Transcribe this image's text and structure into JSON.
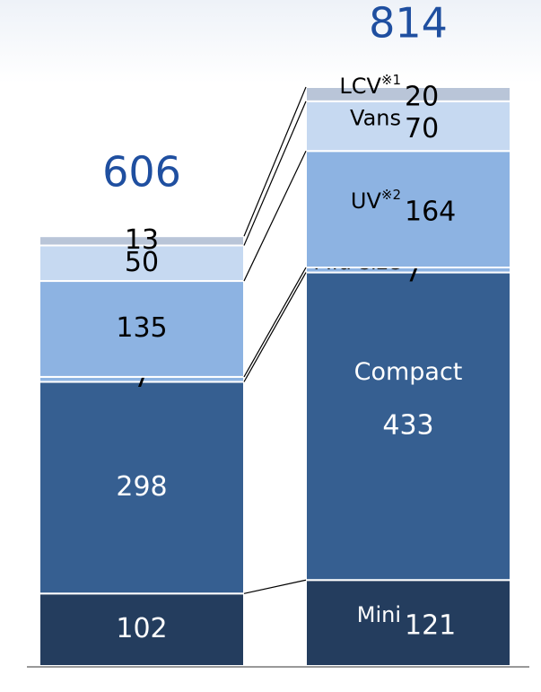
{
  "chart_data": {
    "type": "stacked_bar",
    "categories": [
      null,
      null
    ],
    "totals": [
      606,
      814
    ],
    "totals_color": "#1f4fa0",
    "series": [
      {
        "name": "Mini",
        "color": "#243d5e",
        "text_color": "#ffffff",
        "values": [
          102,
          121
        ]
      },
      {
        "name": "Compact",
        "color": "#365f91",
        "text_color": "#ffffff",
        "values": [
          298,
          433
        ]
      },
      {
        "name": "Mid-size",
        "color": "#8db3e2",
        "text_color": "#000000",
        "values": [
          7,
          7
        ]
      },
      {
        "name": "UV",
        "note": "※2",
        "color": "#8db3e2",
        "text_color": "#000000",
        "values": [
          135,
          164
        ]
      },
      {
        "name": "Vans",
        "color": "#c6d9f1",
        "text_color": "#000000",
        "values": [
          50,
          70
        ]
      },
      {
        "name": "LCV",
        "note": "※1",
        "color": "#b9c5d8",
        "text_color": "#000000",
        "values": [
          13,
          20
        ]
      }
    ],
    "ylim": [
      0,
      815
    ]
  }
}
